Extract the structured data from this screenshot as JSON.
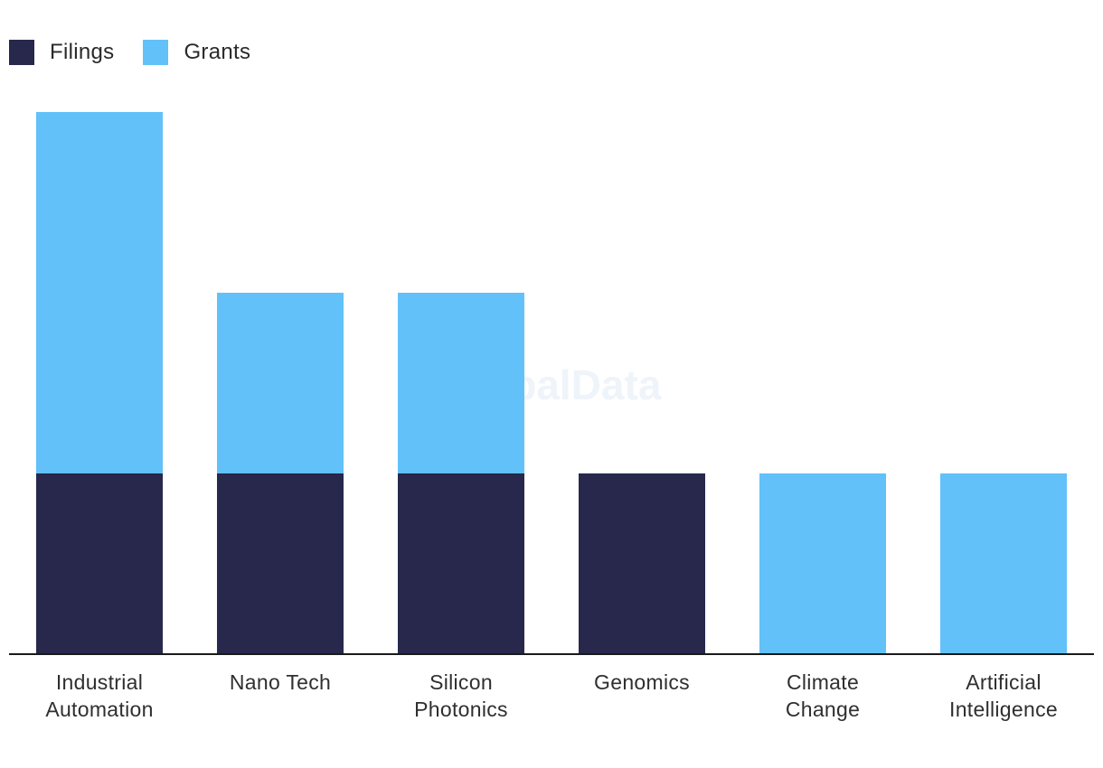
{
  "chart_data": {
    "type": "bar",
    "stacked": true,
    "title": "",
    "xlabel": "",
    "ylabel": "",
    "ylim": [
      0,
      3
    ],
    "grid": false,
    "legend_position": "top-left",
    "categories": [
      [
        "Industrial",
        "Automation"
      ],
      [
        "Nano Tech"
      ],
      [
        "Silicon",
        "Photonics"
      ],
      [
        "Genomics"
      ],
      [
        "Climate",
        "Change"
      ],
      [
        "Artificial",
        "Intelligence"
      ]
    ],
    "series": [
      {
        "name": "Filings",
        "color": "#27284b",
        "values": [
          1,
          1,
          1,
          1,
          0,
          0
        ]
      },
      {
        "name": "Grants",
        "color": "#62c1f8",
        "values": [
          2,
          1,
          1,
          0,
          1,
          1
        ]
      }
    ]
  },
  "legend": {
    "items": [
      {
        "label": "Filings",
        "color": "#27284b"
      },
      {
        "label": "Grants",
        "color": "#62c1f8"
      }
    ]
  },
  "watermark": "GlobalData"
}
